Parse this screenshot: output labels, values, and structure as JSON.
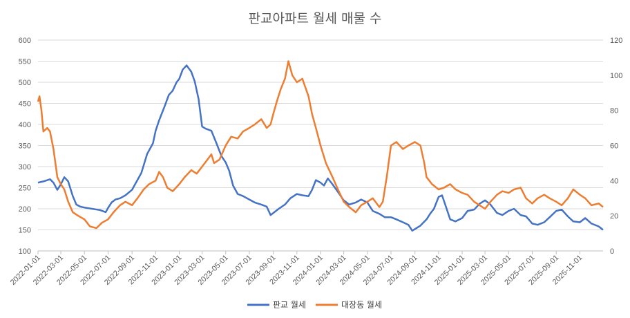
{
  "chart_data": {
    "type": "line",
    "title": "판교아파트 월세 매물 수",
    "xlabel": "",
    "ylabel": "",
    "y_left": {
      "lim": [
        100,
        600
      ],
      "ticks": [
        "100",
        "150",
        "200",
        "250",
        "300",
        "350",
        "400",
        "450",
        "500",
        "550",
        "600"
      ]
    },
    "y_right": {
      "lim": [
        0,
        120
      ],
      "ticks": [
        "0",
        "20",
        "40",
        "60",
        "80",
        "100",
        "120"
      ]
    },
    "x_ticks": [
      "2022-01-01",
      "2022-03-01",
      "2022-05-01",
      "2022-07-01",
      "2022-09-01",
      "2022-11-01",
      "2023-01-01",
      "2023-03-01",
      "2023-05-01",
      "2023-07-01",
      "2023-09-01",
      "2023-11-01",
      "2024-01-01",
      "2024-03-01",
      "2024-05-01",
      "2024-07-01",
      "2024-09-01",
      "2024-11-01",
      "2025-01-01",
      "2025-03-01",
      "2025-05-01",
      "2025-07-01",
      "2025-09-01",
      "2025-11-01"
    ],
    "x_range": [
      "2022-01-01",
      "2025-12-31"
    ],
    "grid": "horizontal",
    "legend_position": "bottom",
    "series": [
      {
        "name": "판교 월세",
        "axis": "left",
        "color": "#4472C4",
        "points": [
          [
            "2022-01-01",
            262
          ],
          [
            "2022-01-15",
            265
          ],
          [
            "2022-02-01",
            270
          ],
          [
            "2022-02-10",
            262
          ],
          [
            "2022-02-20",
            245
          ],
          [
            "2022-03-01",
            258
          ],
          [
            "2022-03-10",
            275
          ],
          [
            "2022-03-20",
            265
          ],
          [
            "2022-04-01",
            230
          ],
          [
            "2022-04-10",
            210
          ],
          [
            "2022-04-20",
            205
          ],
          [
            "2022-05-01",
            203
          ],
          [
            "2022-05-20",
            200
          ],
          [
            "2022-06-10",
            197
          ],
          [
            "2022-06-25",
            192
          ],
          [
            "2022-07-01",
            202
          ],
          [
            "2022-07-10",
            215
          ],
          [
            "2022-07-20",
            222
          ],
          [
            "2022-08-01",
            225
          ],
          [
            "2022-08-15",
            232
          ],
          [
            "2022-09-01",
            245
          ],
          [
            "2022-09-10",
            260
          ],
          [
            "2022-09-25",
            285
          ],
          [
            "2022-10-10",
            330
          ],
          [
            "2022-10-25",
            355
          ],
          [
            "2022-11-01",
            385
          ],
          [
            "2022-11-10",
            410
          ],
          [
            "2022-11-25",
            445
          ],
          [
            "2022-12-05",
            470
          ],
          [
            "2022-12-15",
            480
          ],
          [
            "2022-12-25",
            500
          ],
          [
            "2023-01-01",
            508
          ],
          [
            "2023-01-10",
            530
          ],
          [
            "2023-01-20",
            540
          ],
          [
            "2023-02-01",
            525
          ],
          [
            "2023-02-10",
            502
          ],
          [
            "2023-02-20",
            460
          ],
          [
            "2023-03-01",
            395
          ],
          [
            "2023-03-10",
            390
          ],
          [
            "2023-03-25",
            385
          ],
          [
            "2023-04-05",
            360
          ],
          [
            "2023-04-20",
            325
          ],
          [
            "2023-05-01",
            310
          ],
          [
            "2023-05-10",
            290
          ],
          [
            "2023-05-20",
            255
          ],
          [
            "2023-06-01",
            235
          ],
          [
            "2023-06-15",
            230
          ],
          [
            "2023-07-01",
            222
          ],
          [
            "2023-07-15",
            215
          ],
          [
            "2023-08-01",
            210
          ],
          [
            "2023-08-15",
            205
          ],
          [
            "2023-08-25",
            185
          ],
          [
            "2023-09-01",
            190
          ],
          [
            "2023-09-15",
            200
          ],
          [
            "2023-10-01",
            210
          ],
          [
            "2023-10-15",
            225
          ],
          [
            "2023-11-01",
            235
          ],
          [
            "2023-11-15",
            232
          ],
          [
            "2023-12-01",
            230
          ],
          [
            "2023-12-10",
            245
          ],
          [
            "2023-12-20",
            268
          ],
          [
            "2024-01-01",
            262
          ],
          [
            "2024-01-10",
            255
          ],
          [
            "2024-01-20",
            272
          ],
          [
            "2024-02-01",
            258
          ],
          [
            "2024-02-15",
            240
          ],
          [
            "2024-03-01",
            220
          ],
          [
            "2024-03-15",
            210
          ],
          [
            "2024-04-01",
            215
          ],
          [
            "2024-04-15",
            222
          ],
          [
            "2024-05-01",
            215
          ],
          [
            "2024-05-15",
            195
          ],
          [
            "2024-06-01",
            188
          ],
          [
            "2024-06-15",
            180
          ],
          [
            "2024-07-01",
            180
          ],
          [
            "2024-07-15",
            175
          ],
          [
            "2024-08-01",
            168
          ],
          [
            "2024-08-15",
            162
          ],
          [
            "2024-08-25",
            148
          ],
          [
            "2024-09-01",
            152
          ],
          [
            "2024-09-15",
            160
          ],
          [
            "2024-10-01",
            175
          ],
          [
            "2024-10-10",
            188
          ],
          [
            "2024-10-20",
            200
          ],
          [
            "2024-11-01",
            228
          ],
          [
            "2024-11-10",
            232
          ],
          [
            "2024-11-20",
            205
          ],
          [
            "2024-12-01",
            175
          ],
          [
            "2024-12-15",
            170
          ],
          [
            "2025-01-01",
            178
          ],
          [
            "2025-01-15",
            195
          ],
          [
            "2025-02-01",
            198
          ],
          [
            "2025-02-15",
            212
          ],
          [
            "2025-03-01",
            220
          ],
          [
            "2025-03-15",
            210
          ],
          [
            "2025-04-01",
            190
          ],
          [
            "2025-04-15",
            185
          ],
          [
            "2025-05-01",
            195
          ],
          [
            "2025-05-15",
            200
          ],
          [
            "2025-06-01",
            185
          ],
          [
            "2025-06-15",
            182
          ],
          [
            "2025-07-01",
            165
          ],
          [
            "2025-07-15",
            162
          ],
          [
            "2025-08-01",
            168
          ],
          [
            "2025-08-15",
            180
          ],
          [
            "2025-09-01",
            195
          ],
          [
            "2025-09-15",
            198
          ],
          [
            "2025-10-01",
            182
          ],
          [
            "2025-10-15",
            170
          ],
          [
            "2025-11-01",
            168
          ],
          [
            "2025-11-15",
            178
          ],
          [
            "2025-12-01",
            165
          ],
          [
            "2025-12-20",
            158
          ],
          [
            "2025-12-31",
            150
          ]
        ]
      },
      {
        "name": "대장동 월세",
        "axis": "right",
        "color": "#ED7D31",
        "points": [
          [
            "2022-01-01",
            85
          ],
          [
            "2022-01-05",
            88
          ],
          [
            "2022-01-10",
            80
          ],
          [
            "2022-01-15",
            68
          ],
          [
            "2022-01-25",
            70
          ],
          [
            "2022-02-01",
            68
          ],
          [
            "2022-02-10",
            58
          ],
          [
            "2022-02-20",
            42
          ],
          [
            "2022-03-01",
            38
          ],
          [
            "2022-03-10",
            35
          ],
          [
            "2022-03-20",
            28
          ],
          [
            "2022-04-01",
            22
          ],
          [
            "2022-04-15",
            20
          ],
          [
            "2022-05-01",
            18
          ],
          [
            "2022-05-15",
            14
          ],
          [
            "2022-06-01",
            13
          ],
          [
            "2022-06-15",
            16
          ],
          [
            "2022-07-01",
            18
          ],
          [
            "2022-07-15",
            22
          ],
          [
            "2022-08-01",
            26
          ],
          [
            "2022-08-15",
            28
          ],
          [
            "2022-09-01",
            26
          ],
          [
            "2022-09-15",
            30
          ],
          [
            "2022-10-01",
            35
          ],
          [
            "2022-10-15",
            38
          ],
          [
            "2022-11-01",
            40
          ],
          [
            "2022-11-10",
            45
          ],
          [
            "2022-11-20",
            42
          ],
          [
            "2022-12-01",
            36
          ],
          [
            "2022-12-15",
            34
          ],
          [
            "2023-01-01",
            38
          ],
          [
            "2023-01-15",
            42
          ],
          [
            "2023-02-01",
            46
          ],
          [
            "2023-02-15",
            44
          ],
          [
            "2023-03-01",
            48
          ],
          [
            "2023-03-15",
            52
          ],
          [
            "2023-03-25",
            55
          ],
          [
            "2023-04-01",
            50
          ],
          [
            "2023-04-15",
            52
          ],
          [
            "2023-05-01",
            60
          ],
          [
            "2023-05-15",
            65
          ],
          [
            "2023-06-01",
            64
          ],
          [
            "2023-06-15",
            68
          ],
          [
            "2023-07-01",
            70
          ],
          [
            "2023-07-15",
            72
          ],
          [
            "2023-08-01",
            75
          ],
          [
            "2023-08-15",
            70
          ],
          [
            "2023-08-25",
            72
          ],
          [
            "2023-09-01",
            78
          ],
          [
            "2023-09-10",
            85
          ],
          [
            "2023-09-20",
            92
          ],
          [
            "2023-10-01",
            98
          ],
          [
            "2023-10-10",
            108
          ],
          [
            "2023-10-20",
            100
          ],
          [
            "2023-11-01",
            96
          ],
          [
            "2023-11-15",
            98
          ],
          [
            "2023-12-01",
            88
          ],
          [
            "2023-12-10",
            78
          ],
          [
            "2023-12-20",
            70
          ],
          [
            "2024-01-01",
            60
          ],
          [
            "2024-01-15",
            50
          ],
          [
            "2024-02-01",
            42
          ],
          [
            "2024-02-15",
            35
          ],
          [
            "2024-03-01",
            28
          ],
          [
            "2024-03-15",
            25
          ],
          [
            "2024-04-01",
            22
          ],
          [
            "2024-04-15",
            26
          ],
          [
            "2024-05-01",
            28
          ],
          [
            "2024-05-15",
            30
          ],
          [
            "2024-06-01",
            25
          ],
          [
            "2024-06-10",
            28
          ],
          [
            "2024-06-20",
            42
          ],
          [
            "2024-07-01",
            60
          ],
          [
            "2024-07-15",
            62
          ],
          [
            "2024-08-01",
            58
          ],
          [
            "2024-08-15",
            60
          ],
          [
            "2024-09-01",
            62
          ],
          [
            "2024-09-15",
            60
          ],
          [
            "2024-09-25",
            50
          ],
          [
            "2024-10-01",
            42
          ],
          [
            "2024-10-15",
            38
          ],
          [
            "2024-11-01",
            35
          ],
          [
            "2024-11-15",
            36
          ],
          [
            "2024-12-01",
            38
          ],
          [
            "2024-12-15",
            35
          ],
          [
            "2025-01-01",
            33
          ],
          [
            "2025-01-15",
            32
          ],
          [
            "2025-02-01",
            28
          ],
          [
            "2025-02-15",
            26
          ],
          [
            "2025-03-01",
            24
          ],
          [
            "2025-03-15",
            28
          ],
          [
            "2025-04-01",
            32
          ],
          [
            "2025-04-15",
            34
          ],
          [
            "2025-05-01",
            33
          ],
          [
            "2025-05-15",
            35
          ],
          [
            "2025-06-01",
            36
          ],
          [
            "2025-06-15",
            30
          ],
          [
            "2025-07-01",
            27
          ],
          [
            "2025-07-15",
            30
          ],
          [
            "2025-08-01",
            32
          ],
          [
            "2025-08-15",
            30
          ],
          [
            "2025-09-01",
            28
          ],
          [
            "2025-09-15",
            26
          ],
          [
            "2025-10-01",
            30
          ],
          [
            "2025-10-15",
            35
          ],
          [
            "2025-11-01",
            32
          ],
          [
            "2025-11-15",
            30
          ],
          [
            "2025-12-01",
            26
          ],
          [
            "2025-12-20",
            27
          ],
          [
            "2025-12-31",
            25
          ]
        ]
      }
    ]
  }
}
